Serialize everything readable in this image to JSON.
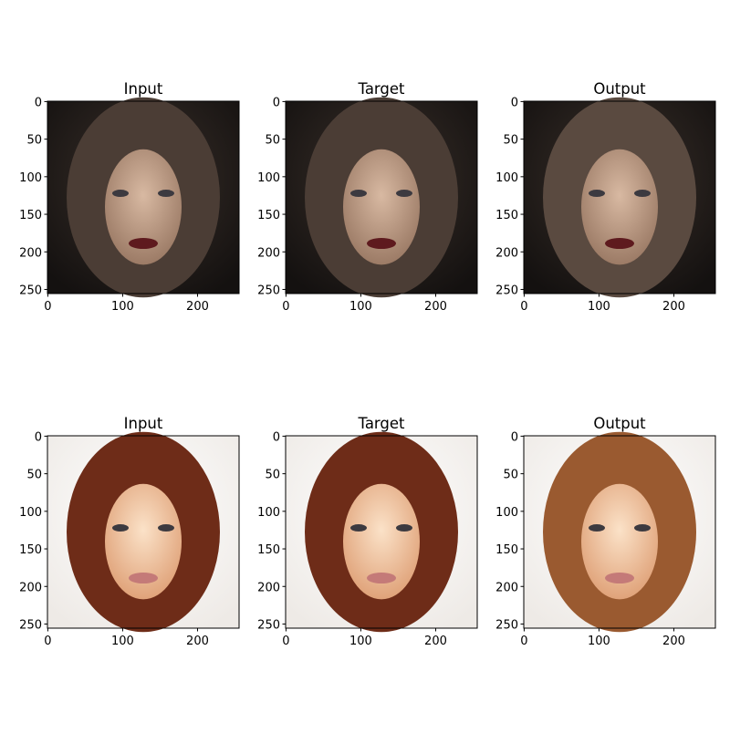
{
  "axes": {
    "xlim": [
      -0.5,
      255.5
    ],
    "ylim": [
      255.5,
      -0.5
    ],
    "xticks": [
      0,
      100,
      200
    ],
    "yticks": [
      0,
      50,
      100,
      150,
      200,
      250
    ]
  },
  "panels": [
    {
      "title": "Input"
    },
    {
      "title": "Target"
    },
    {
      "title": "Output"
    },
    {
      "title": "Input"
    },
    {
      "title": "Target"
    },
    {
      "title": "Output"
    }
  ]
}
